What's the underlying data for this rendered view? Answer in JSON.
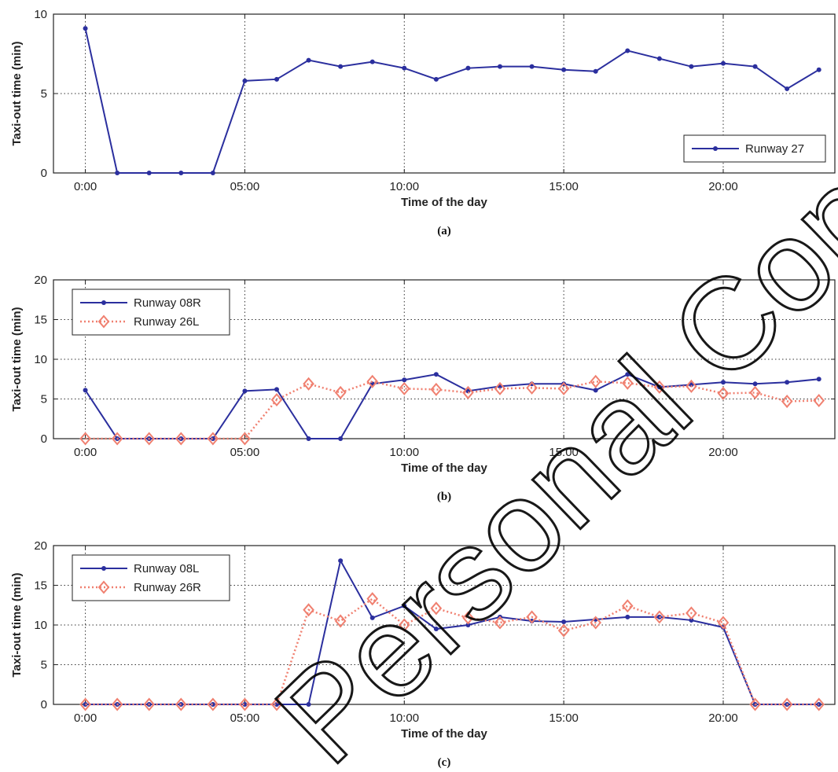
{
  "watermark": "Personal Copy. Do Not Distribute or Reproduce",
  "chart_data": [
    {
      "type": "line",
      "caption": "(a)",
      "xlabel": "Time of the day",
      "ylabel": "Taxi-out time (min)",
      "xlim": [
        -1,
        23.5
      ],
      "ylim": [
        0,
        10
      ],
      "xticks": [
        0,
        5,
        10,
        15,
        20
      ],
      "xtick_labels": [
        "0:00",
        "05:00",
        "10:00",
        "15:00",
        "20:00"
      ],
      "yticks": [
        0,
        5,
        10
      ],
      "grid": true,
      "legend_position": "bottom-right",
      "x": [
        0,
        1,
        2,
        3,
        4,
        5,
        6,
        7,
        8,
        9,
        10,
        11,
        12,
        13,
        14,
        15,
        16,
        17,
        18,
        19,
        20,
        21,
        22,
        23
      ],
      "series": [
        {
          "name": "Runway 27",
          "color": "#2b2f9e",
          "style": "solid",
          "marker": "dot",
          "values": [
            9.1,
            0,
            0,
            0,
            0,
            5.8,
            5.9,
            7.1,
            6.7,
            7.0,
            6.6,
            5.9,
            6.6,
            6.7,
            6.7,
            6.5,
            6.4,
            7.7,
            7.2,
            6.7,
            6.9,
            6.7,
            5.3,
            6.5
          ]
        }
      ]
    },
    {
      "type": "line",
      "caption": "(b)",
      "xlabel": "Time of the day",
      "ylabel": "Taxi-out time (min)",
      "xlim": [
        -1,
        23.5
      ],
      "ylim": [
        0,
        20
      ],
      "xticks": [
        0,
        5,
        10,
        15,
        20
      ],
      "xtick_labels": [
        "0:00",
        "05:00",
        "10:00",
        "15:00",
        "20:00"
      ],
      "yticks": [
        0,
        5,
        10,
        15,
        20
      ],
      "grid": true,
      "legend_position": "top-left",
      "x": [
        0,
        1,
        2,
        3,
        4,
        5,
        6,
        7,
        8,
        9,
        10,
        11,
        12,
        13,
        14,
        15,
        16,
        17,
        18,
        19,
        20,
        21,
        22,
        23
      ],
      "series": [
        {
          "name": "Runway 08R",
          "color": "#2b2f9e",
          "style": "solid",
          "marker": "dot",
          "values": [
            6.1,
            0,
            0,
            0,
            0,
            6.0,
            6.2,
            0,
            0,
            6.9,
            7.4,
            8.1,
            6.0,
            6.6,
            6.9,
            6.9,
            6.1,
            8.1,
            6.5,
            6.8,
            7.1,
            6.9,
            7.1,
            7.5
          ]
        },
        {
          "name": "Runway 26L",
          "color": "#f08070",
          "style": "dotted",
          "marker": "diamond",
          "values": [
            0,
            0,
            0,
            0,
            0,
            0,
            4.9,
            6.9,
            5.8,
            7.2,
            6.3,
            6.2,
            5.8,
            6.3,
            6.4,
            6.3,
            7.2,
            7.0,
            6.5,
            6.6,
            5.7,
            5.8,
            4.7,
            4.8
          ]
        }
      ]
    },
    {
      "type": "line",
      "caption": "(c)",
      "xlabel": "Time of the day",
      "ylabel": "Taxi-out time (min)",
      "xlim": [
        -1,
        23.5
      ],
      "ylim": [
        0,
        20
      ],
      "xticks": [
        0,
        5,
        10,
        15,
        20
      ],
      "xtick_labels": [
        "0:00",
        "05:00",
        "10:00",
        "15:00",
        "20:00"
      ],
      "yticks": [
        0,
        5,
        10,
        15,
        20
      ],
      "grid": true,
      "legend_position": "top-left",
      "x": [
        0,
        1,
        2,
        3,
        4,
        5,
        6,
        7,
        8,
        9,
        10,
        11,
        12,
        13,
        14,
        15,
        16,
        17,
        18,
        19,
        20,
        21,
        22,
        23
      ],
      "series": [
        {
          "name": "Runway 08L",
          "color": "#2b2f9e",
          "style": "solid",
          "marker": "dot",
          "values": [
            0,
            0,
            0,
            0,
            0,
            0,
            0,
            0,
            18.1,
            10.9,
            12.4,
            9.5,
            10.0,
            11.0,
            10.5,
            10.4,
            10.7,
            11.0,
            11.0,
            10.6,
            9.7,
            0,
            0,
            0
          ]
        },
        {
          "name": "Runway 26R",
          "color": "#f08070",
          "style": "dotted",
          "marker": "diamond",
          "values": [
            0,
            0,
            0,
            0,
            0,
            0,
            0,
            11.9,
            10.5,
            13.3,
            10.0,
            12.1,
            10.9,
            10.3,
            11.0,
            9.3,
            10.3,
            12.4,
            11.0,
            11.5,
            10.3,
            0,
            0,
            0
          ]
        }
      ]
    }
  ]
}
